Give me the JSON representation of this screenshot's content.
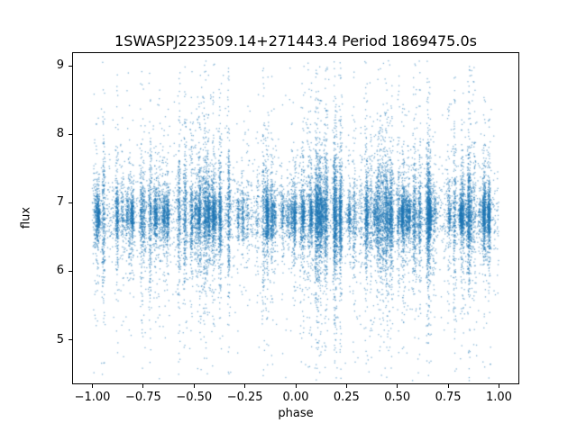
{
  "figure": {
    "background": "#ffffff",
    "frame_color": "#000000",
    "text_color": "#000000"
  },
  "chart_data": {
    "type": "scatter",
    "title": "1SWASPJ223509.14+271443.4 Period 1869475.0s",
    "xlabel": "phase",
    "ylabel": "flux",
    "xlim": [
      -1.1,
      1.1
    ],
    "ylim": [
      4.35,
      9.2
    ],
    "xticks": [
      -1.0,
      -0.75,
      -0.5,
      -0.25,
      0.0,
      0.25,
      0.5,
      0.75,
      1.0
    ],
    "xtick_labels": [
      "−1.00",
      "−0.75",
      "−0.50",
      "−0.25",
      "0.00",
      "0.25",
      "0.50",
      "0.75",
      "1.00"
    ],
    "yticks": [
      5,
      6,
      7,
      8,
      9
    ],
    "ytick_labels": [
      "5",
      "6",
      "7",
      "8",
      "9"
    ],
    "grid": false,
    "legend": null,
    "marker_color": "#1f77b4",
    "marker_alpha": 0.55,
    "marker_size_px": 1.3,
    "n_points": 26000,
    "seed": 7,
    "n_phase_clusters": 150,
    "phase_jitter": 0.004,
    "uniform_fraction": 0.12,
    "flux_mean": 6.82,
    "flux_core_sd": 0.22,
    "flux_mid_sd": 0.55,
    "flux_tail_sd": 1.15,
    "mix_core": 0.7,
    "mix_mid": 0.22,
    "flux_min": 4.4,
    "flux_max": 9.1,
    "description": "Dense phase-folded SuperWASP light curve: ~26k unbinned flux measurements scattered around flux ≈ 6.8 across phase −1 to +1, with narrow vertical night-by-night streaks spanning roughly flux 4.5 to 9."
  }
}
